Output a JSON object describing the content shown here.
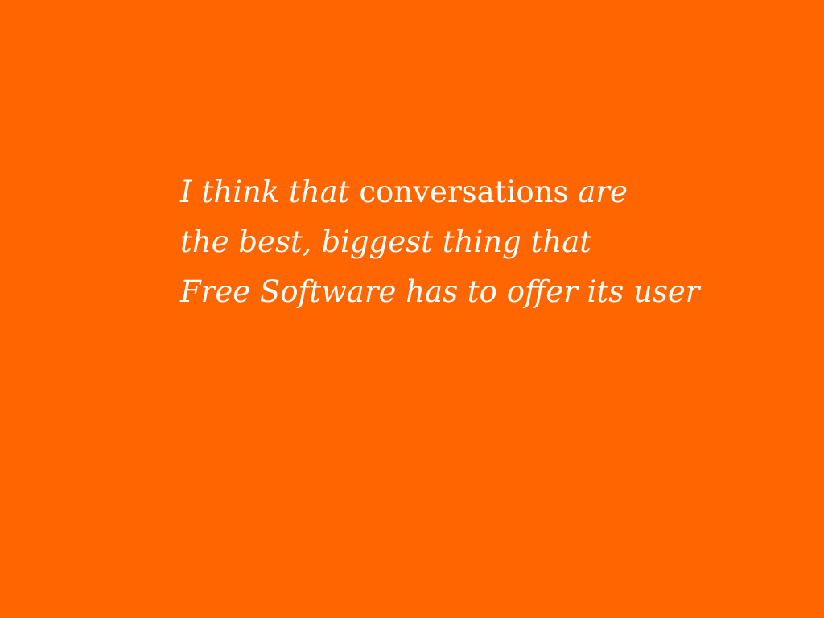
{
  "slide": {
    "background_color": "#FF6600",
    "text_color": "#FFFFFF",
    "quote": {
      "line1": {
        "part1": "I think that",
        "part2": "conversations",
        "part3": "are"
      },
      "line2": "the best, biggest thing that",
      "line3": "Free Software has to offer its user"
    }
  }
}
